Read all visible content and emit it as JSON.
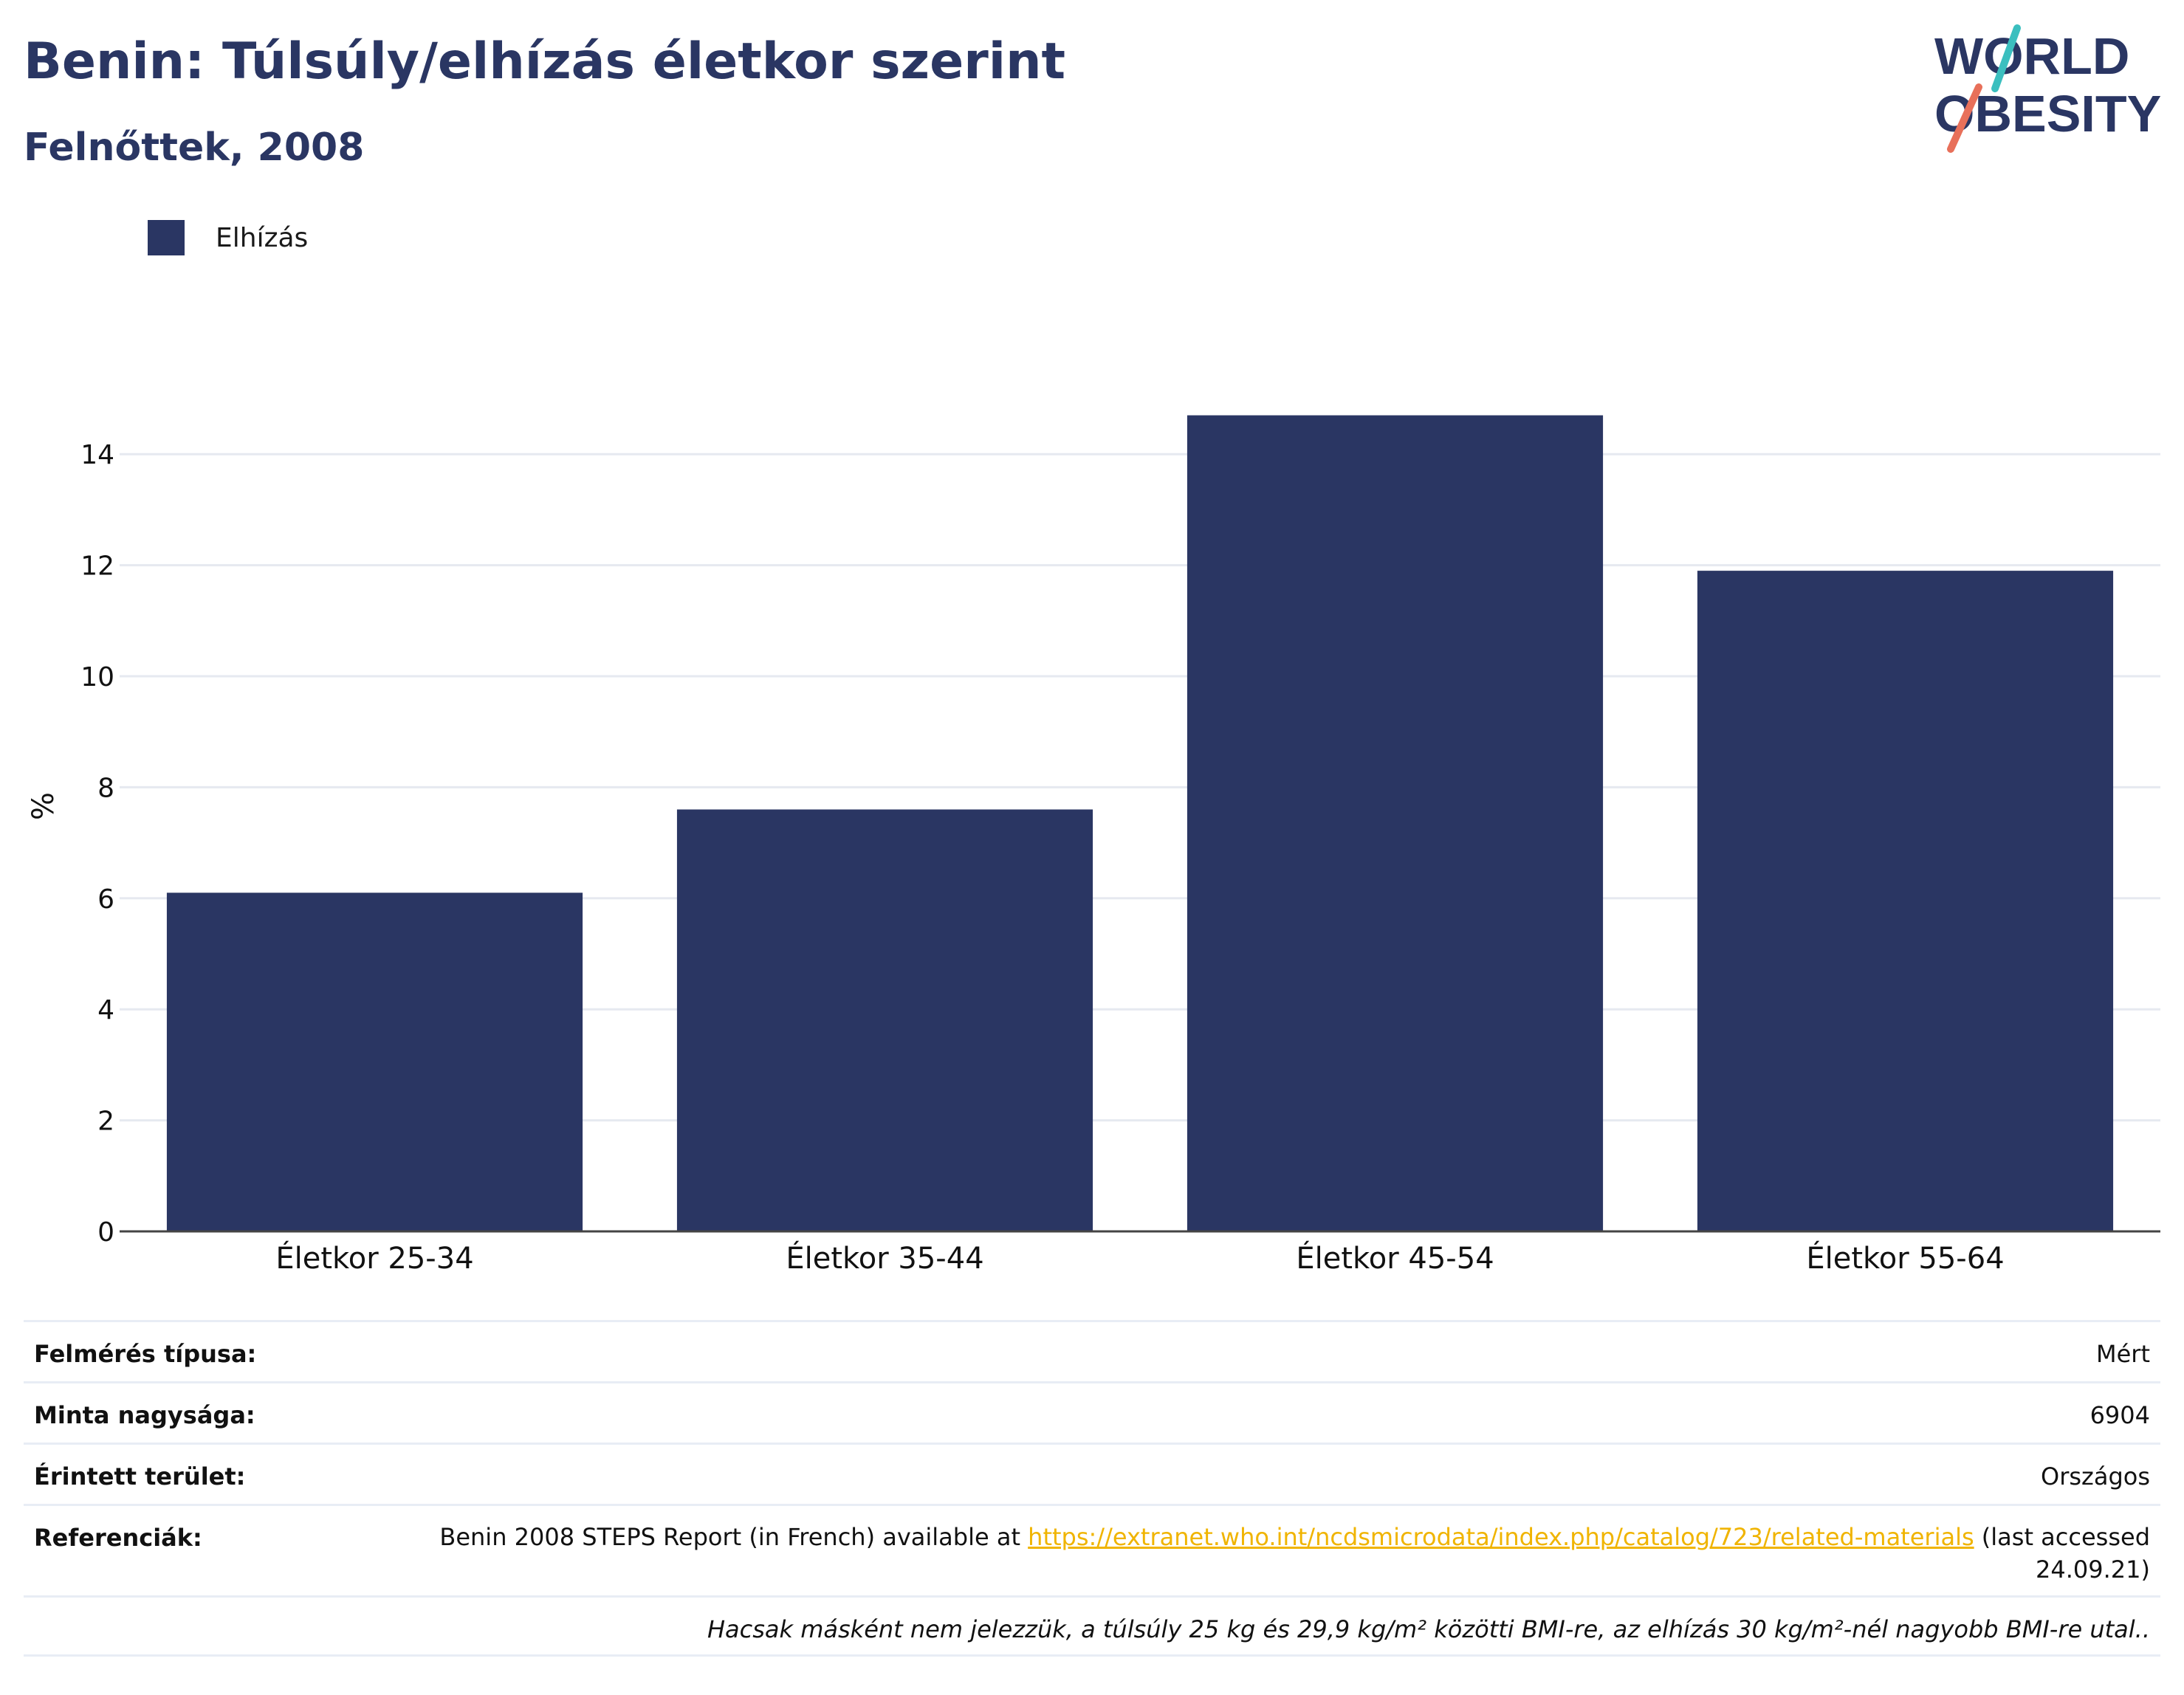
{
  "header": {
    "title": "Benin: Túlsúly/elhízás életkor szerint",
    "subtitle": "Felnőttek, 2008"
  },
  "logo": {
    "line1": "WORLD",
    "line2": "OBESITY",
    "text_color": "#2a3663",
    "slash_colors": [
      "#3bbfbf",
      "#e8705a"
    ]
  },
  "legend": {
    "items": [
      {
        "label": "Elhízás",
        "color": "#2a3663"
      }
    ]
  },
  "chart_data": {
    "type": "bar",
    "categories": [
      "Életkor 25-34",
      "Életkor 35-44",
      "Életkor 45-54",
      "Életkor 55-64"
    ],
    "series": [
      {
        "name": "Elhízás",
        "values": [
          6.1,
          7.6,
          14.7,
          11.9
        ],
        "color": "#2a3663"
      }
    ],
    "ylabel": "%",
    "ylim": [
      0,
      15
    ],
    "yticks": [
      0,
      2,
      4,
      6,
      8,
      10,
      12,
      14
    ],
    "grid": true,
    "legend_position": "top-left"
  },
  "info_table": {
    "survey_type": {
      "label": "Felmérés típusa:",
      "value": "Mért"
    },
    "sample_size": {
      "label": "Minta nagysága:",
      "value": "6904"
    },
    "area": {
      "label": "Érintett terület:",
      "value": "Országos"
    },
    "references": {
      "label": "Referenciák:",
      "prefix": "Benin 2008 STEPS Report (in French) available at ",
      "link": "https://extranet.who.int/ncdsmicrodata/index.php/catalog/723/related-materials",
      "suffix": " (last accessed 24.09.21)"
    },
    "note": "Hacsak másként nem jelezzük, a túlsúly 25 kg és 29,9 kg/m² közötti BMI-re, az elhízás 30 kg/m²-nél nagyobb BMI-re utal.."
  }
}
